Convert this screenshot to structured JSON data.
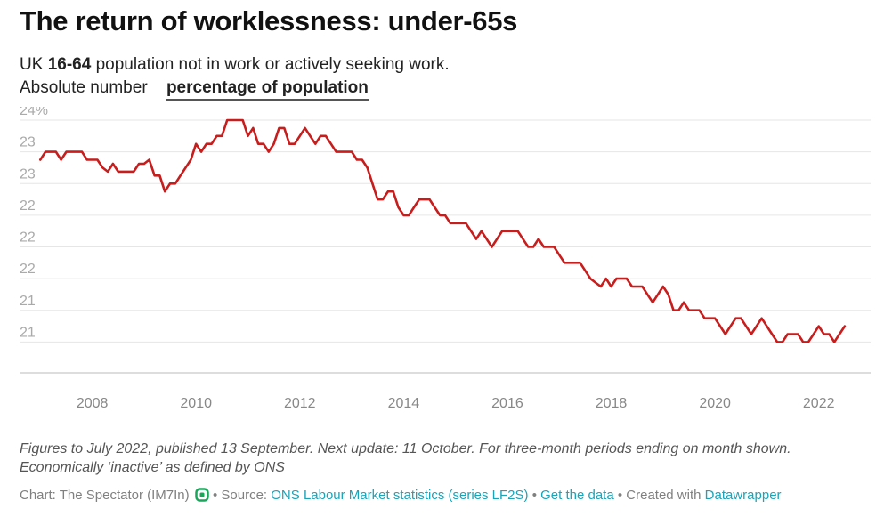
{
  "title": "The return of worklessness: under-65s",
  "subtitle": {
    "prefix": "UK ",
    "bold": "16-64",
    "suffix": " population not in work or actively seeking work."
  },
  "tabs": [
    {
      "label": "Absolute number",
      "active": false
    },
    {
      "label": "percentage of population",
      "active": true
    }
  ],
  "note_line1": "Figures to July 2022, published 13 September. Next update: 11 October. For three-month periods ending on month shown.",
  "note_line2": "Economically ‘inactive’ as defined by ONS",
  "footer": {
    "chart_by": "Chart: The Spectator (IM7In)",
    "sep1": " • Source: ",
    "source": "ONS Labour Market statistics (series LF2S)",
    "sep2": " • ",
    "get_data": "Get the data",
    "sep3": " • Created with ",
    "created_with": "Datawrapper"
  },
  "colors": {
    "line": "#c71e1d",
    "grid": "#e6e6e6",
    "axis": "#bbbbbb",
    "tick_text": "#aaaaaa",
    "link": "#1aa4b8"
  },
  "chart_data": {
    "type": "line",
    "title": "",
    "xlabel": "",
    "ylabel": "",
    "y_tick_labels": [
      "24%",
      "23",
      "23",
      "22",
      "22",
      "22",
      "21",
      "21"
    ],
    "y_tick_values": [
      24.0,
      23.6,
      23.2,
      22.8,
      22.4,
      22.0,
      21.6,
      21.2
    ],
    "ylim": [
      20.8,
      24.0
    ],
    "x_tick_labels": [
      "2008",
      "2010",
      "2012",
      "2014",
      "2016",
      "2018",
      "2020",
      "2022"
    ],
    "x_tick_values": [
      2008,
      2010,
      2012,
      2014,
      2016,
      2018,
      2020,
      2022
    ],
    "xlim": [
      2006.6,
      2023.0
    ],
    "grid": true,
    "legend": "none",
    "series": [
      {
        "values": [
          [
            2007.0,
            23.5
          ],
          [
            2007.1,
            23.6
          ],
          [
            2007.3,
            23.6
          ],
          [
            2007.4,
            23.5
          ],
          [
            2007.5,
            23.6
          ],
          [
            2007.6,
            23.6
          ],
          [
            2007.8,
            23.6
          ],
          [
            2007.9,
            23.5
          ],
          [
            2008.1,
            23.5
          ],
          [
            2008.2,
            23.4
          ],
          [
            2008.3,
            23.35
          ],
          [
            2008.4,
            23.45
          ],
          [
            2008.5,
            23.35
          ],
          [
            2008.6,
            23.35
          ],
          [
            2008.8,
            23.35
          ],
          [
            2008.9,
            23.45
          ],
          [
            2009.0,
            23.45
          ],
          [
            2009.1,
            23.5
          ],
          [
            2009.2,
            23.3
          ],
          [
            2009.3,
            23.3
          ],
          [
            2009.4,
            23.1
          ],
          [
            2009.5,
            23.2
          ],
          [
            2009.6,
            23.2
          ],
          [
            2009.7,
            23.3
          ],
          [
            2009.8,
            23.4
          ],
          [
            2009.9,
            23.5
          ],
          [
            2010.0,
            23.7
          ],
          [
            2010.1,
            23.6
          ],
          [
            2010.2,
            23.7
          ],
          [
            2010.3,
            23.7
          ],
          [
            2010.4,
            23.8
          ],
          [
            2010.5,
            23.8
          ],
          [
            2010.6,
            24.0
          ],
          [
            2010.8,
            24.0
          ],
          [
            2010.9,
            24.0
          ],
          [
            2011.0,
            23.8
          ],
          [
            2011.1,
            23.9
          ],
          [
            2011.2,
            23.7
          ],
          [
            2011.3,
            23.7
          ],
          [
            2011.4,
            23.6
          ],
          [
            2011.5,
            23.7
          ],
          [
            2011.6,
            23.9
          ],
          [
            2011.7,
            23.9
          ],
          [
            2011.8,
            23.7
          ],
          [
            2011.9,
            23.7
          ],
          [
            2012.0,
            23.8
          ],
          [
            2012.1,
            23.9
          ],
          [
            2012.2,
            23.8
          ],
          [
            2012.3,
            23.7
          ],
          [
            2012.4,
            23.8
          ],
          [
            2012.5,
            23.8
          ],
          [
            2012.6,
            23.7
          ],
          [
            2012.7,
            23.6
          ],
          [
            2012.9,
            23.6
          ],
          [
            2013.0,
            23.6
          ],
          [
            2013.1,
            23.5
          ],
          [
            2013.2,
            23.5
          ],
          [
            2013.3,
            23.4
          ],
          [
            2013.4,
            23.2
          ],
          [
            2013.5,
            23.0
          ],
          [
            2013.6,
            23.0
          ],
          [
            2013.7,
            23.1
          ],
          [
            2013.8,
            23.1
          ],
          [
            2013.9,
            22.9
          ],
          [
            2014.0,
            22.8
          ],
          [
            2014.1,
            22.8
          ],
          [
            2014.2,
            22.9
          ],
          [
            2014.3,
            23.0
          ],
          [
            2014.4,
            23.0
          ],
          [
            2014.5,
            23.0
          ],
          [
            2014.6,
            22.9
          ],
          [
            2014.7,
            22.8
          ],
          [
            2014.8,
            22.8
          ],
          [
            2014.9,
            22.7
          ],
          [
            2015.0,
            22.7
          ],
          [
            2015.2,
            22.7
          ],
          [
            2015.3,
            22.6
          ],
          [
            2015.4,
            22.5
          ],
          [
            2015.5,
            22.6
          ],
          [
            2015.6,
            22.5
          ],
          [
            2015.7,
            22.4
          ],
          [
            2015.8,
            22.5
          ],
          [
            2015.9,
            22.6
          ],
          [
            2016.0,
            22.6
          ],
          [
            2016.1,
            22.6
          ],
          [
            2016.2,
            22.6
          ],
          [
            2016.3,
            22.5
          ],
          [
            2016.4,
            22.4
          ],
          [
            2016.5,
            22.4
          ],
          [
            2016.6,
            22.5
          ],
          [
            2016.7,
            22.4
          ],
          [
            2016.8,
            22.4
          ],
          [
            2016.9,
            22.4
          ],
          [
            2017.0,
            22.3
          ],
          [
            2017.1,
            22.2
          ],
          [
            2017.2,
            22.2
          ],
          [
            2017.3,
            22.2
          ],
          [
            2017.4,
            22.2
          ],
          [
            2017.5,
            22.1
          ],
          [
            2017.6,
            22.0
          ],
          [
            2017.7,
            21.95
          ],
          [
            2017.8,
            21.9
          ],
          [
            2017.9,
            22.0
          ],
          [
            2018.0,
            21.9
          ],
          [
            2018.1,
            22.0
          ],
          [
            2018.2,
            22.0
          ],
          [
            2018.3,
            22.0
          ],
          [
            2018.4,
            21.9
          ],
          [
            2018.5,
            21.9
          ],
          [
            2018.6,
            21.9
          ],
          [
            2018.7,
            21.8
          ],
          [
            2018.8,
            21.7
          ],
          [
            2018.9,
            21.8
          ],
          [
            2019.0,
            21.9
          ],
          [
            2019.1,
            21.8
          ],
          [
            2019.2,
            21.6
          ],
          [
            2019.3,
            21.6
          ],
          [
            2019.4,
            21.7
          ],
          [
            2019.5,
            21.6
          ],
          [
            2019.6,
            21.6
          ],
          [
            2019.7,
            21.6
          ],
          [
            2019.8,
            21.5
          ],
          [
            2019.9,
            21.5
          ],
          [
            2020.0,
            21.5
          ],
          [
            2020.1,
            21.4
          ],
          [
            2020.2,
            21.3
          ],
          [
            2020.3,
            21.4
          ],
          [
            2020.4,
            21.5
          ],
          [
            2020.5,
            21.5
          ],
          [
            2020.6,
            21.4
          ],
          [
            2020.7,
            21.3
          ],
          [
            2020.8,
            21.4
          ],
          [
            2020.9,
            21.5
          ],
          [
            2021.0,
            21.4
          ],
          [
            2021.1,
            21.3
          ],
          [
            2021.2,
            21.2
          ],
          [
            2021.3,
            21.2
          ],
          [
            2021.4,
            21.3
          ],
          [
            2021.5,
            21.3
          ],
          [
            2021.6,
            21.3
          ],
          [
            2021.7,
            21.2
          ],
          [
            2021.8,
            21.2
          ],
          [
            2021.9,
            21.3
          ],
          [
            2022.0,
            21.4
          ],
          [
            2022.1,
            21.3
          ],
          [
            2022.2,
            21.3
          ],
          [
            2022.3,
            21.2
          ],
          [
            2022.4,
            21.3
          ],
          [
            2022.5,
            21.4
          ]
        ]
      }
    ]
  }
}
